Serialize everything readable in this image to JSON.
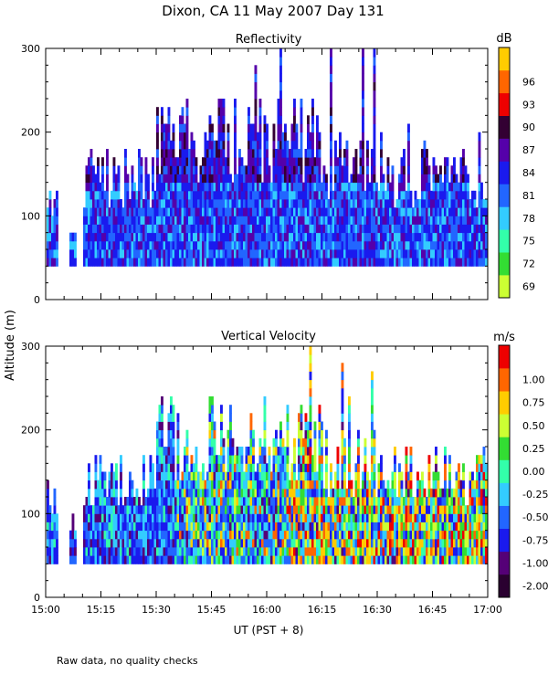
{
  "figure": {
    "title": "Dixon, CA 11 May 2007  Day 131",
    "ylabel": "Altitude  (m)",
    "xlabel": "UT  (PST + 8)",
    "footnote": "Raw data, no quality checks"
  },
  "chart_data": [
    {
      "type": "heatmap",
      "title": "Reflectivity",
      "colorbar_unit": "dB",
      "colorbar_ticks": [
        "69",
        "72",
        "75",
        "78",
        "81",
        "84",
        "87",
        "90",
        "93",
        "96"
      ],
      "colorbar_colors": [
        "#ccff33",
        "#33dd33",
        "#33ffaa",
        "#33ccff",
        "#2266ff",
        "#1a1aee",
        "#5500aa",
        "#330033",
        "#ee0000",
        "#ff6600",
        "#ffcc00"
      ],
      "xlim": [
        "15:00",
        "17:00"
      ],
      "xticks": [
        "15:00",
        "15:15",
        "15:30",
        "15:45",
        "16:00",
        "16:15",
        "16:30",
        "16:45",
        "17:00"
      ],
      "ylim": [
        0,
        300
      ],
      "yticks": [
        "0",
        "100",
        "200",
        "300"
      ]
    },
    {
      "type": "heatmap",
      "title": "Vertical Velocity",
      "colorbar_unit": "m/s",
      "colorbar_ticks": [
        "-2.00",
        "-1.00",
        "-0.75",
        "-0.50",
        "-0.25",
        "0.00",
        "0.25",
        "0.50",
        "0.75",
        "1.00"
      ],
      "colorbar_colors": [
        "#2a0030",
        "#550077",
        "#1a1aee",
        "#2266ff",
        "#33ccff",
        "#33ffaa",
        "#33dd33",
        "#ccff33",
        "#ffcc00",
        "#ff6600",
        "#ee0000"
      ],
      "xlim": [
        "15:00",
        "17:00"
      ],
      "xticks": [
        "15:00",
        "15:15",
        "15:30",
        "15:45",
        "16:00",
        "16:15",
        "16:30",
        "16:45",
        "17:00"
      ],
      "ylim": [
        0,
        300
      ],
      "yticks": [
        "0",
        "100",
        "200",
        "300"
      ]
    }
  ]
}
